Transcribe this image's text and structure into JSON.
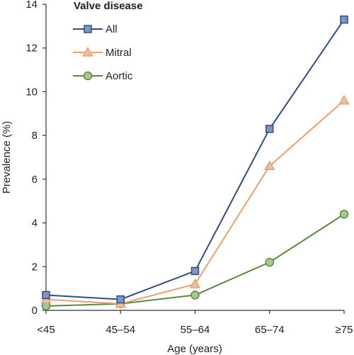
{
  "chart_data": {
    "type": "line",
    "legend_title": "Valve disease",
    "legend_placement": "top-left",
    "xlabel": "Age (years)",
    "ylabel": "Prevalence (%)",
    "categories": [
      "<45",
      "45–54",
      "55–64",
      "65–74",
      "≥75"
    ],
    "ylim": [
      0,
      14
    ],
    "yticks": [
      0,
      2,
      4,
      6,
      8,
      10,
      12,
      14
    ],
    "grid": false,
    "series": [
      {
        "name": "All",
        "marker": "square",
        "color": "#2f4f7f",
        "marker_fill": "#7f95bd",
        "values": [
          0.7,
          0.5,
          1.8,
          8.3,
          13.3
        ]
      },
      {
        "name": "Mitral",
        "marker": "triangle",
        "color": "#e8a070",
        "marker_fill": "#e8c0a0",
        "values": [
          0.5,
          0.3,
          1.2,
          6.6,
          9.6
        ]
      },
      {
        "name": "Aortic",
        "marker": "circle",
        "color": "#5a8a40",
        "marker_fill": "#a8c890",
        "values": [
          0.2,
          0.3,
          0.7,
          2.2,
          4.4
        ]
      }
    ]
  }
}
